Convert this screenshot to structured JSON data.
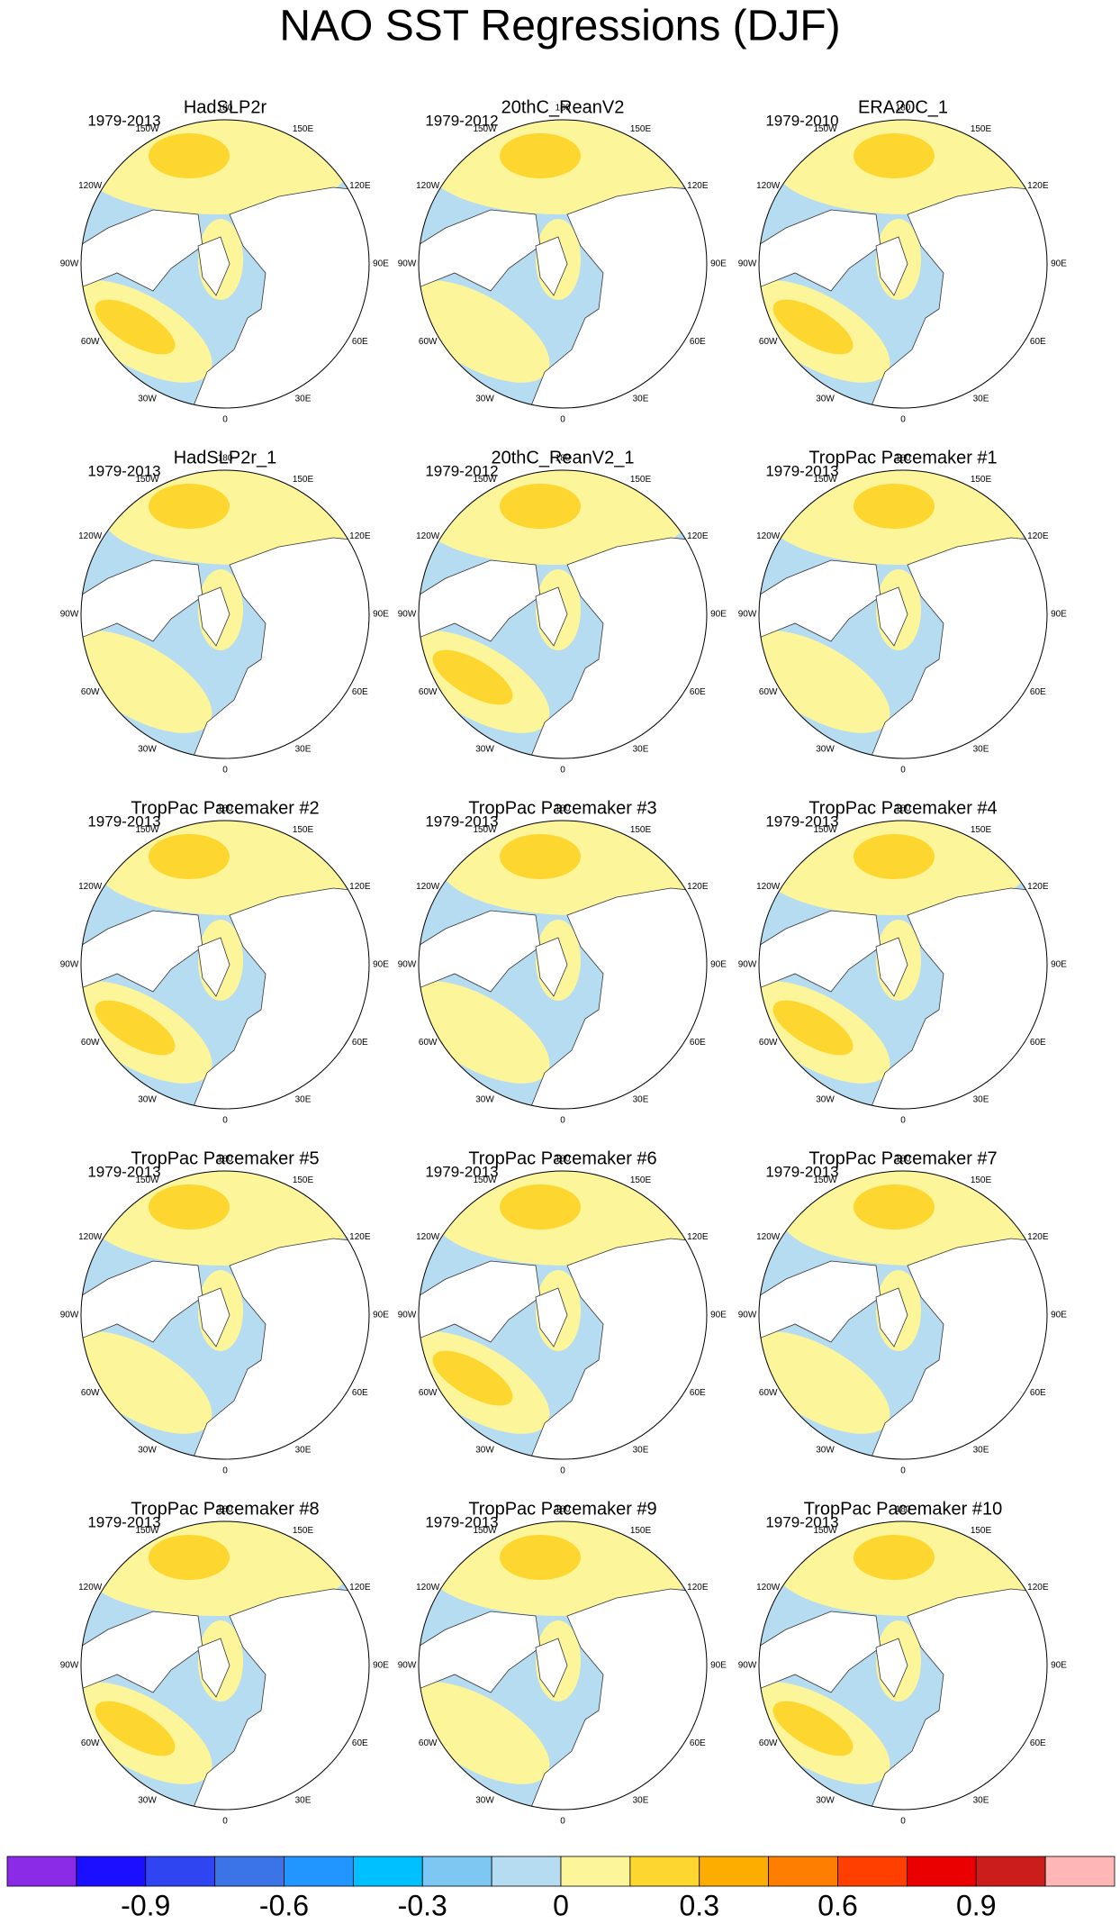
{
  "title": "NAO SST Regressions (DJF)",
  "lon_labels": [
    "180",
    "150E",
    "120E",
    "90E",
    "60E",
    "30E",
    "0",
    "30W",
    "60W",
    "90W",
    "120W",
    "150W"
  ],
  "panels": [
    {
      "title": "HadSLP2r",
      "period": "1979-2013"
    },
    {
      "title": "20thC_ReanV2",
      "period": "1979-2012"
    },
    {
      "title": "ERA20C_1",
      "period": "1979-2010"
    },
    {
      "title": "HadSLP2r_1",
      "period": "1979-2013"
    },
    {
      "title": "20thC_ReanV2_1",
      "period": "1979-2012"
    },
    {
      "title": "TropPac Pacemaker #1",
      "period": "1979-2013"
    },
    {
      "title": "TropPac Pacemaker #2",
      "period": "1979-2013"
    },
    {
      "title": "TropPac Pacemaker #3",
      "period": "1979-2013"
    },
    {
      "title": "TropPac Pacemaker #4",
      "period": "1979-2013"
    },
    {
      "title": "TropPac Pacemaker #5",
      "period": "1979-2013"
    },
    {
      "title": "TropPac Pacemaker #6",
      "period": "1979-2013"
    },
    {
      "title": "TropPac Pacemaker #7",
      "period": "1979-2013"
    },
    {
      "title": "TropPac Pacemaker #8",
      "period": "1979-2013"
    },
    {
      "title": "TropPac Pacemaker #9",
      "period": "1979-2013"
    },
    {
      "title": "TropPac Pacemaker #10",
      "period": "1979-2013"
    }
  ],
  "colorbar": {
    "lim": [
      -1.2,
      1.2
    ],
    "colors": [
      "#8b2be8",
      "#1a10ff",
      "#2f45f2",
      "#3a74e6",
      "#2196ff",
      "#00c0ff",
      "#7cc8f2",
      "#b6dcf2",
      "#fdf59a",
      "#fed630",
      "#fdad00",
      "#fd7e00",
      "#ff3f00",
      "#ea0000",
      "#cc1d1d",
      "#ffb6b6"
    ],
    "ticks": [
      -0.9,
      -0.6,
      -0.3,
      0,
      0.3,
      0.6,
      0.9
    ]
  }
}
